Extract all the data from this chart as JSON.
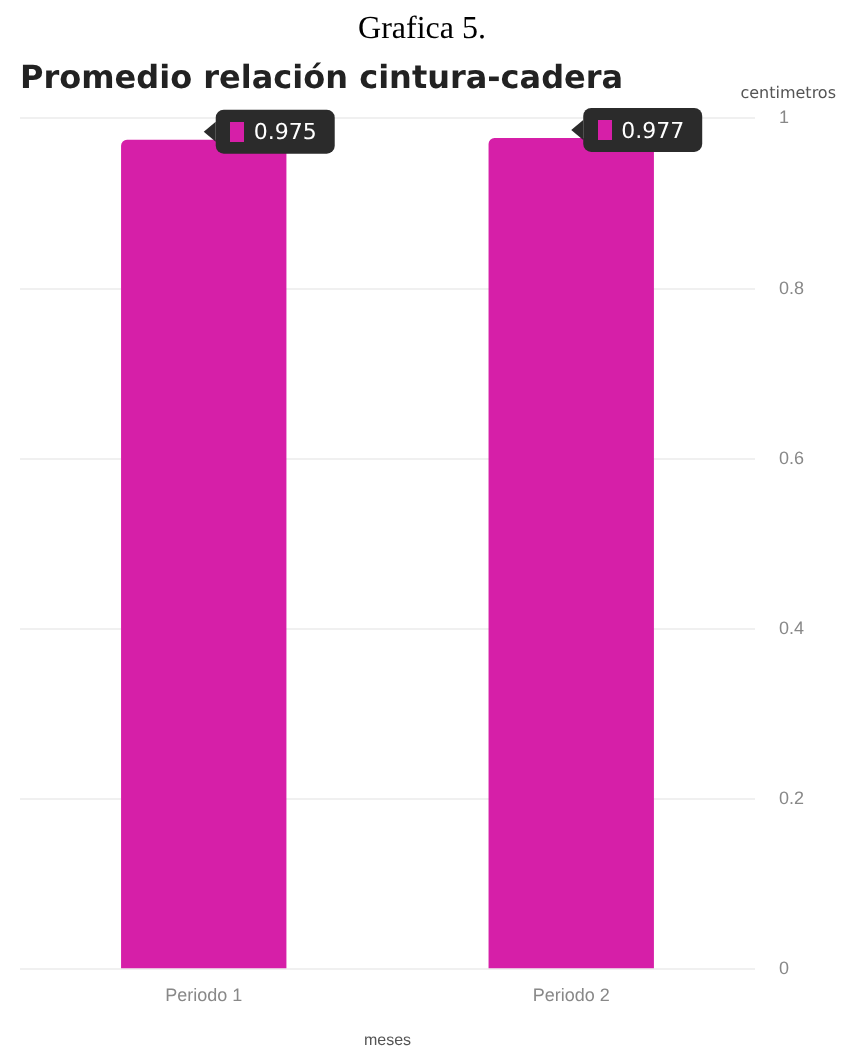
{
  "chart_data": {
    "type": "bar",
    "title": "Promedio relación cintura-cadera",
    "annotations": [
      "Grafica 5."
    ],
    "categories": [
      "Periodo 1",
      "Periodo 2"
    ],
    "values": [
      0.975,
      0.977
    ],
    "color": "#d61fa8",
    "xlabel": "meses",
    "ylabel": "centimetros",
    "ylim": [
      0,
      1
    ],
    "yticks": [
      0,
      0.2,
      0.4,
      0.6,
      0.8,
      1
    ],
    "grid": "y",
    "data_labels": true
  }
}
